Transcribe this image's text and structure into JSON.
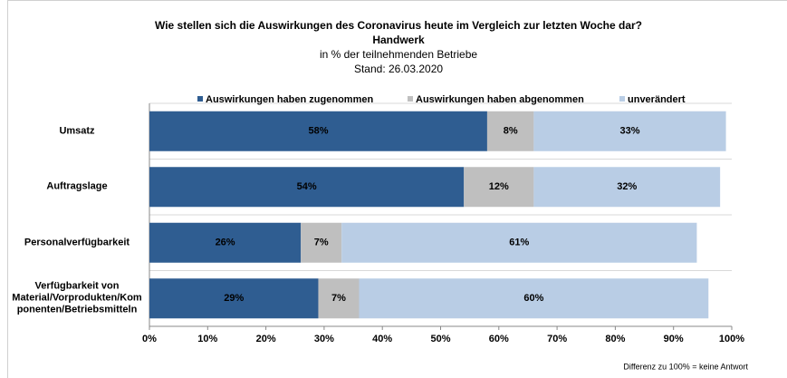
{
  "chart_data": {
    "type": "stacked_barh",
    "title": "Wie stellen sich die Auswirkungen des Coronavirus heute im Vergleich zur letzten Woche dar?",
    "subtitle": "Handwerk",
    "unit_note": "in % der teilnehmenden Betriebe",
    "date_note": "Stand:  26.03.2020",
    "footnote": "Differenz zu 100% = keine Antwort",
    "categories": [
      "Umsatz",
      "Auftragslage",
      "Personalverfügbarkeit",
      "Verfügbarkeit von Material/Vorprodukten/Komponenten/Betriebsmitteln"
    ],
    "series": [
      {
        "name": "Auswirkungen haben zugenommen",
        "color": "#2f5d91",
        "label_color": "#ffffff",
        "values": [
          58,
          54,
          26,
          29
        ],
        "value_labels": [
          "58%",
          "54%",
          "26%",
          "29%"
        ]
      },
      {
        "name": "Auswirkungen haben abgenommen",
        "color": "#bfbfbf",
        "label_color": "#262626",
        "values": [
          8,
          12,
          7,
          7
        ],
        "value_labels": [
          "8%",
          "12%",
          "7%",
          "7%"
        ]
      },
      {
        "name": "unverändert",
        "color": "#b9cde5",
        "label_color": "#1f3864",
        "values": [
          33,
          32,
          61,
          60
        ],
        "value_labels": [
          "33%",
          "32%",
          "61%",
          "60%"
        ]
      }
    ],
    "xlim": [
      0,
      100
    ],
    "xticks": [
      {
        "value": 0,
        "label": "0%"
      },
      {
        "value": 10,
        "label": "10%"
      },
      {
        "value": 20,
        "label": "20%"
      },
      {
        "value": 30,
        "label": "30%"
      },
      {
        "value": 40,
        "label": "40%"
      },
      {
        "value": 50,
        "label": "50%"
      },
      {
        "value": 60,
        "label": "60%"
      },
      {
        "value": 70,
        "label": "70%"
      },
      {
        "value": 80,
        "label": "80%"
      },
      {
        "value": 90,
        "label": "90%"
      },
      {
        "value": 100,
        "label": "100%"
      }
    ],
    "legend": "top"
  }
}
